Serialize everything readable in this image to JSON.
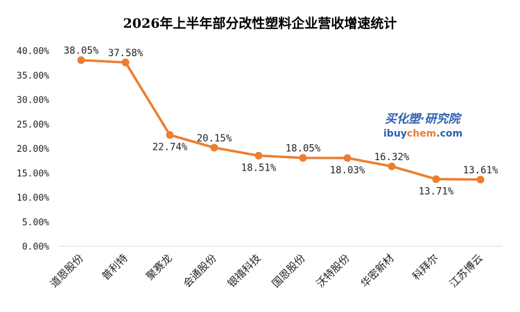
{
  "chart_data": {
    "type": "line",
    "title": "2026年上半年部分改性塑料企业营收增速统计",
    "categories": [
      "道恩股份",
      "普利特",
      "聚赛龙",
      "会通股份",
      "银禧科技",
      "国恩股份",
      "沃特股份",
      "华密新材",
      "科拜尔",
      "江苏博云"
    ],
    "values": [
      38.05,
      37.58,
      22.74,
      20.15,
      18.51,
      18.05,
      18.03,
      16.32,
      13.71,
      13.61
    ],
    "data_labels": [
      "38.05%",
      "37.58%",
      "22.74%",
      "20.15%",
      "18.51%",
      "18.05%",
      "18.03%",
      "16.32%",
      "13.71%",
      "13.61%"
    ],
    "y_ticks": [
      "0.00%",
      "5.00%",
      "10.00%",
      "15.00%",
      "20.00%",
      "25.00%",
      "30.00%",
      "35.00%",
      "40.00%"
    ],
    "ylim": [
      0,
      40
    ],
    "xlabel": "",
    "ylabel": "",
    "grid": false,
    "line_color": "#ed7d31",
    "axis_color": "#d9d9d9"
  },
  "watermark": {
    "line1": "买化塑·研究院",
    "line2_a": "ibuy",
    "line2_b": "chem",
    "line2_c": ".com",
    "colors": {
      "blue": "#2f5fae",
      "orange": "#ed7d31"
    }
  }
}
